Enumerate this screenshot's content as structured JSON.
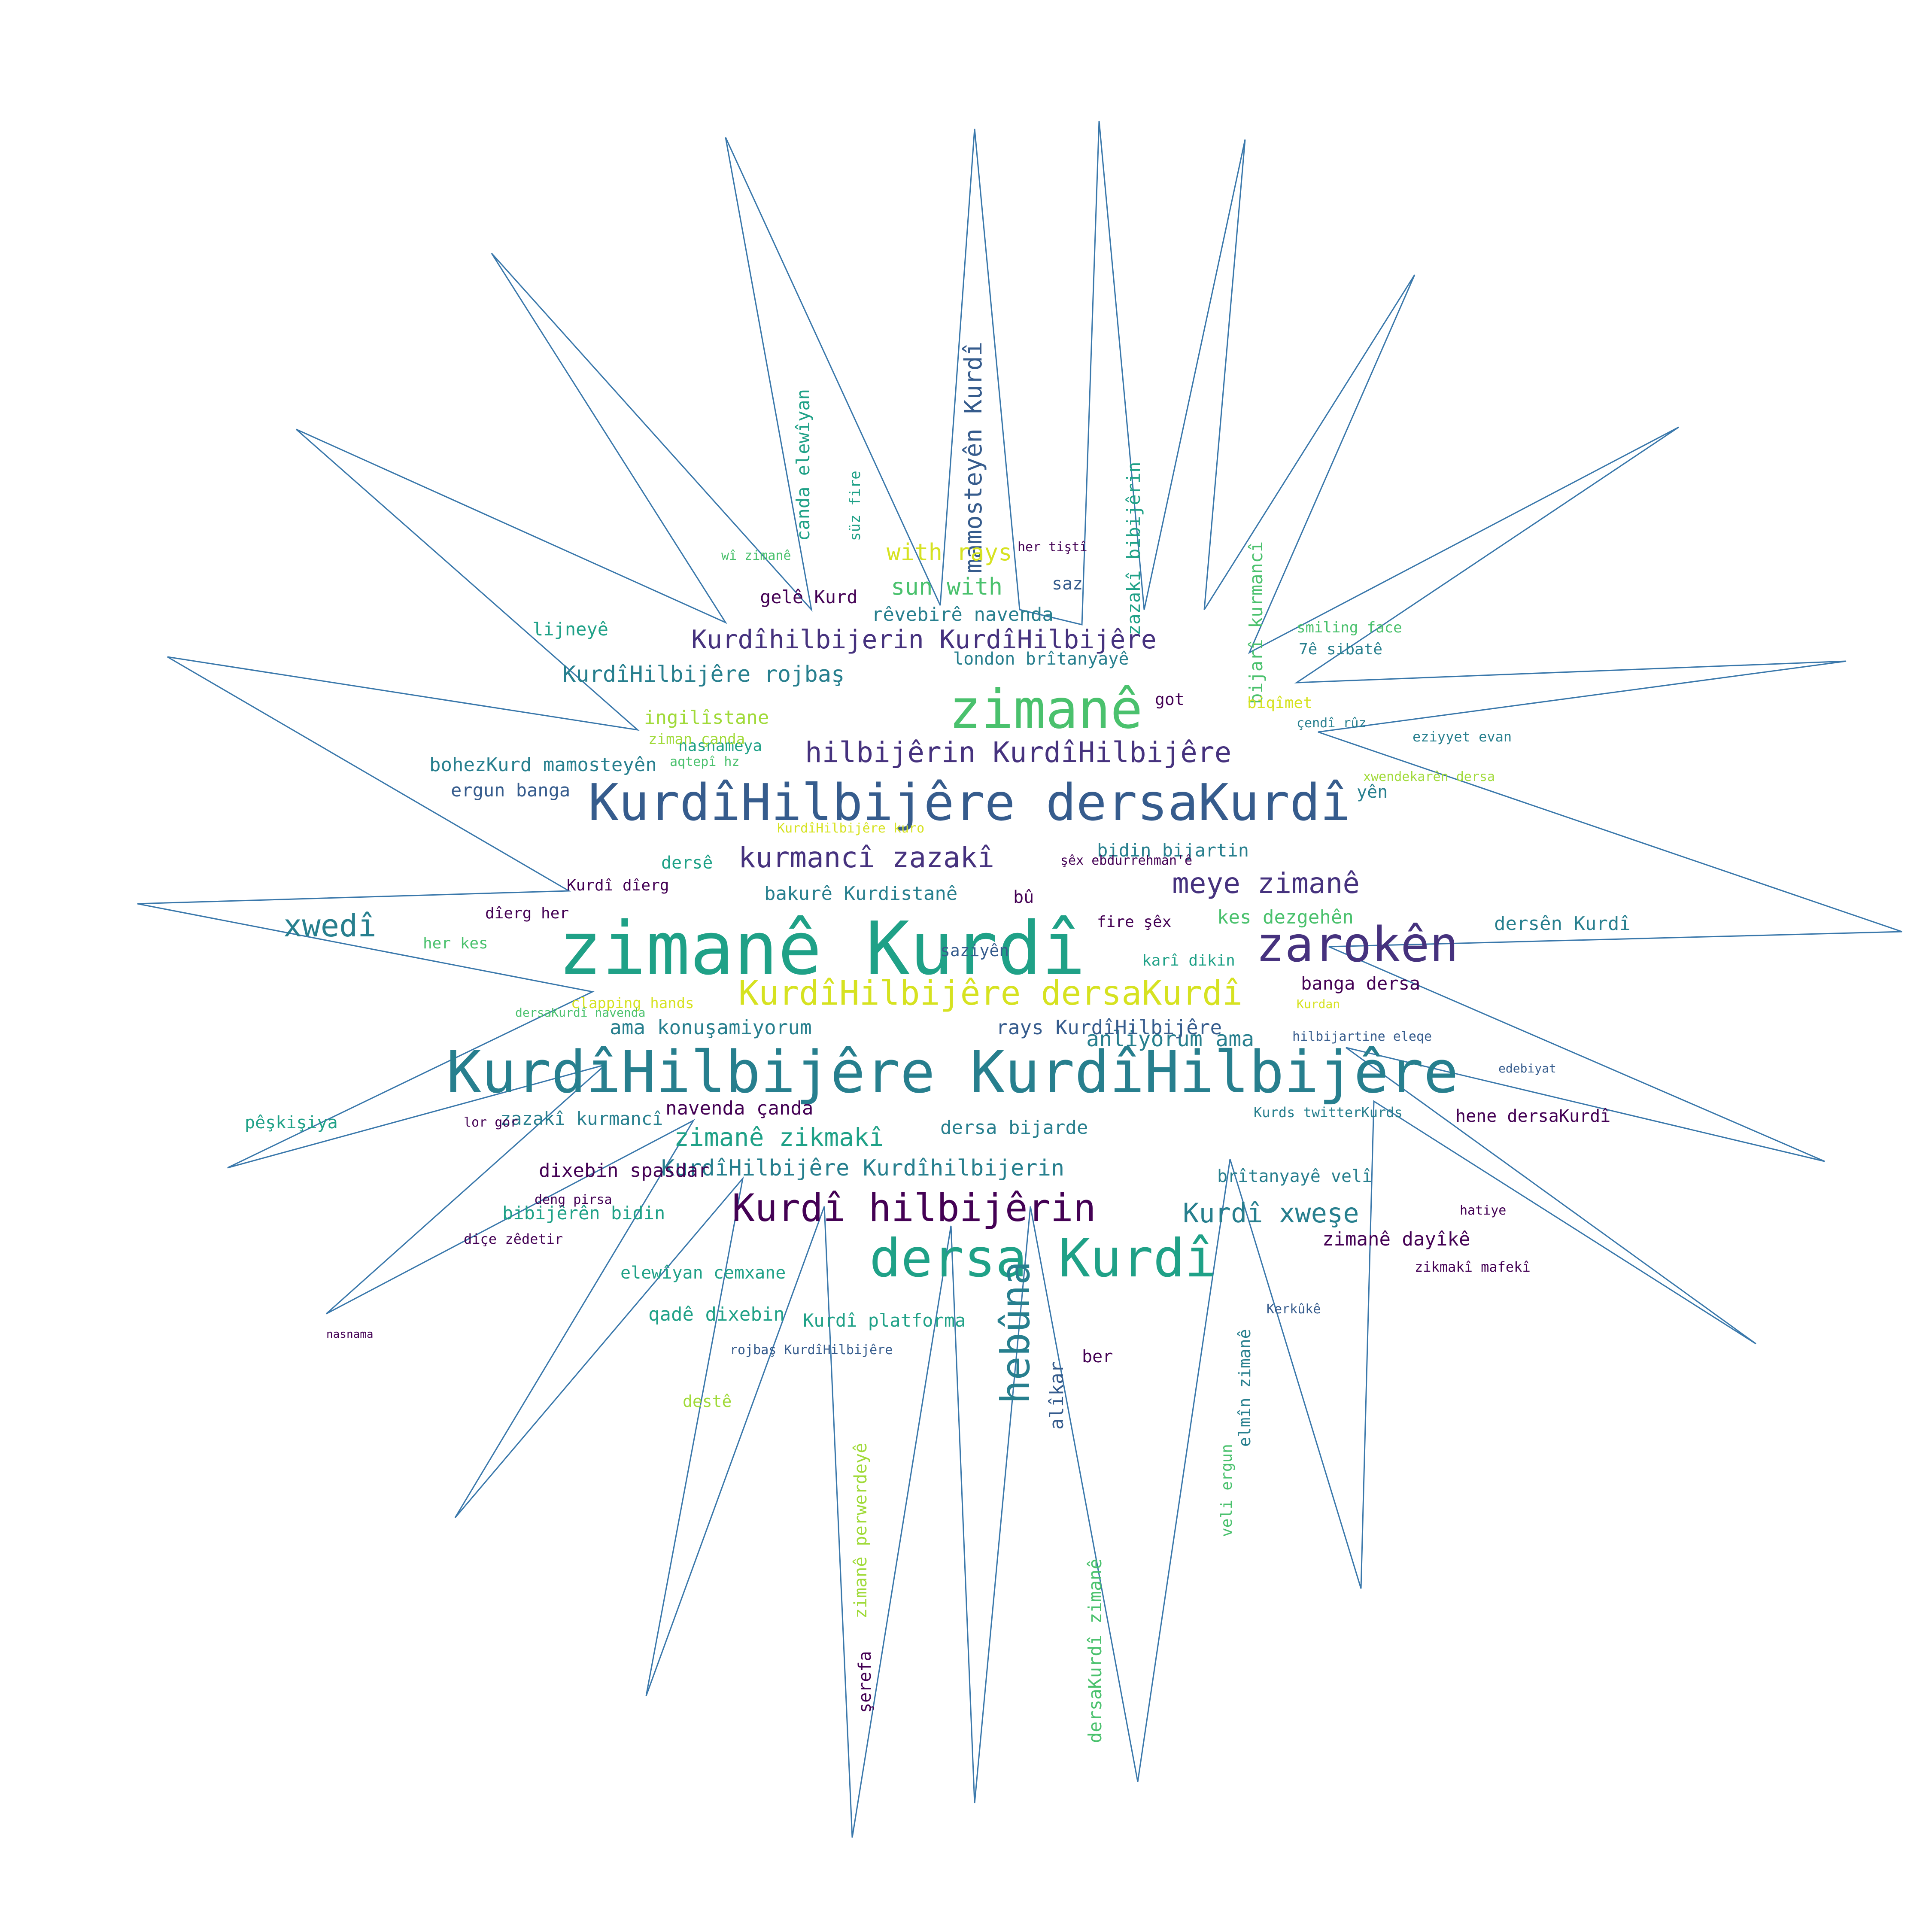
{
  "image_kind": "word-cloud",
  "outline": {
    "shape": "star-burst",
    "rays": 16,
    "stroke_color": "#3a78ab",
    "fill": "#ffffff"
  },
  "palette": [
    "#440154",
    "#46327e",
    "#365c8d",
    "#277f8e",
    "#1fa187",
    "#4ac16d",
    "#a0da39",
    "#d6e221"
  ],
  "words": [
    {
      "text": "zimanê Kurdî",
      "c": 4
    },
    {
      "text": "KurdîHilbijêre KurdîHilbijêre",
      "c": 3
    },
    {
      "text": "KurdîHilbijêre dersaKurdî",
      "c": 2
    },
    {
      "text": "zimanê",
      "c": 5
    },
    {
      "text": "dersa Kurdî",
      "c": 4
    },
    {
      "text": "zarokên",
      "c": 1
    },
    {
      "text": "Kurdî hilbijêrin",
      "c": 0
    },
    {
      "text": "hebûna",
      "c": 3
    },
    {
      "text": "Kurdîhilbijerin KurdîHilbijêre",
      "c": 1
    },
    {
      "text": "hilbijêrin KurdîHilbijêre",
      "c": 1
    },
    {
      "text": "KurdîHilbijêre dersaKurdî",
      "c": 7
    },
    {
      "text": "xwedî",
      "c": 3
    },
    {
      "text": "kurmancî zazakî",
      "c": 1
    },
    {
      "text": "meye zimanê",
      "c": 1
    },
    {
      "text": "KurdîHilbijêre rojbaş",
      "c": 3
    },
    {
      "text": "zimanê zikmakî",
      "c": 4
    },
    {
      "text": "KurdîHilbijêre Kurdîhilbijerin",
      "c": 3
    },
    {
      "text": "mamosteyên Kurdî",
      "c": 2
    },
    {
      "text": "with rays",
      "c": 7
    },
    {
      "text": "sun with",
      "c": 4
    },
    {
      "text": "Kurdî xweşe",
      "c": 2
    },
    {
      "text": "anliyorum ama",
      "c": 2
    },
    {
      "text": "rays KurdîHilbijêre",
      "c": 1
    },
    {
      "text": "ama konuşamiyorum",
      "c": 3
    },
    {
      "text": "bakurê Kurdistanê",
      "c": 2
    },
    {
      "text": "ingilîstane",
      "c": 6
    },
    {
      "text": "london brîtanyayê",
      "c": 3
    },
    {
      "text": "rêvebirê navenda",
      "c": 2
    },
    {
      "text": "gelê Kurd",
      "c": 1
    },
    {
      "text": "bohezKurd mamosteyên",
      "c": 2
    },
    {
      "text": "ergun banga",
      "c": 3
    },
    {
      "text": "dersên Kurdî",
      "c": 3
    },
    {
      "text": "kes dezgehên",
      "c": 4
    },
    {
      "text": "bidin bijartin",
      "c": 2
    },
    {
      "text": "banga dersa",
      "c": 1
    },
    {
      "text": "navenda çanda",
      "c": 1
    },
    {
      "text": "dersa bijarde",
      "c": 2
    },
    {
      "text": "dixebin spasdar",
      "c": 0
    },
    {
      "text": "bibijêrên bidin",
      "c": 4
    },
    {
      "text": "qadê dixebin",
      "c": 4
    },
    {
      "text": "elewîyan cemxane",
      "c": 4
    },
    {
      "text": "zazakî kurmancî",
      "c": 3
    },
    {
      "text": "pêşkişiya",
      "c": 4
    },
    {
      "text": "lijneyê",
      "c": 4
    },
    {
      "text": "zimanê dayîkê",
      "c": 1
    },
    {
      "text": "hene dersaKurdî",
      "c": 1
    },
    {
      "text": "brîtanyayê velî",
      "c": 3
    },
    {
      "text": "zazakî bibijêrin",
      "c": 4
    },
    {
      "text": "bijarî kurmancî",
      "c": 5
    },
    {
      "text": "canda elewîyan",
      "c": 5
    },
    {
      "text": "Kurdî platforma",
      "c": 4
    },
    {
      "text": "dersaKurdî zimanê",
      "c": 5
    },
    {
      "text": "zimanê perwerdeyê",
      "c": 6
    },
    {
      "text": "şerefa",
      "c": 1
    },
    {
      "text": "alîkar",
      "c": 2
    },
    {
      "text": "ber",
      "c": 1
    },
    {
      "text": "saz",
      "c": 2
    },
    {
      "text": "yên",
      "c": 3
    },
    {
      "text": "got",
      "c": 1
    },
    {
      "text": "bû",
      "c": 1
    },
    {
      "text": "dersê",
      "c": 4
    },
    {
      "text": "destê",
      "c": 6
    },
    {
      "text": "Kurdî dîerg",
      "c": 1
    },
    {
      "text": "dîerg her",
      "c": 1
    },
    {
      "text": "her kes",
      "c": 6
    },
    {
      "text": "saziyên",
      "c": 2
    },
    {
      "text": "fire şêx",
      "c": 1
    },
    {
      "text": "karî dikin",
      "c": 4
    },
    {
      "text": "veli ergun",
      "c": 4
    },
    {
      "text": "clapping hands",
      "c": 7
    },
    {
      "text": "smiling face",
      "c": 6
    },
    {
      "text": "biqîmet",
      "c": 7
    },
    {
      "text": "nasnameya",
      "c": 4
    },
    {
      "text": "ziman çanda",
      "c": 6
    },
    {
      "text": "şêx ebdurrehman'ê",
      "c": 1
    },
    {
      "text": "aqtepî hz",
      "c": 4
    },
    {
      "text": "Kurdan",
      "c": 7
    },
    {
      "text": "7ê sibatê",
      "c": 2
    },
    {
      "text": "çendî rûz",
      "c": 2
    },
    {
      "text": "eziyyet evan",
      "c": 2
    },
    {
      "text": "rojbaş KurdîHilbijêre",
      "c": 1
    },
    {
      "text": "dersaKurdî navenda",
      "c": 5
    },
    {
      "text": "elmîn zimanê",
      "c": 3
    },
    {
      "text": "lor gor",
      "c": 1
    },
    {
      "text": "xwendekarên dersa",
      "c": 7
    },
    {
      "text": "wî zimanê",
      "c": 6
    },
    {
      "text": "süz fire",
      "c": 5
    },
    {
      "text": "her tiştî",
      "c": 1
    },
    {
      "text": "hilbijartine eleqe",
      "c": 1
    },
    {
      "text": "KurdîHilbijêre kuro",
      "c": 7
    },
    {
      "text": "zikmakî mafekî",
      "c": 1
    },
    {
      "text": "Kurds twitterKurds",
      "c": 2
    },
    {
      "text": "hatiye",
      "c": 1
    },
    {
      "text": "Kerkûkê",
      "c": 2
    },
    {
      "text": "diçe zêdetir",
      "c": 1
    },
    {
      "text": "deng pirsa",
      "c": 1
    },
    {
      "text": "edebiyat",
      "c": 2
    },
    {
      "text": "nasnama",
      "c": 1
    }
  ]
}
